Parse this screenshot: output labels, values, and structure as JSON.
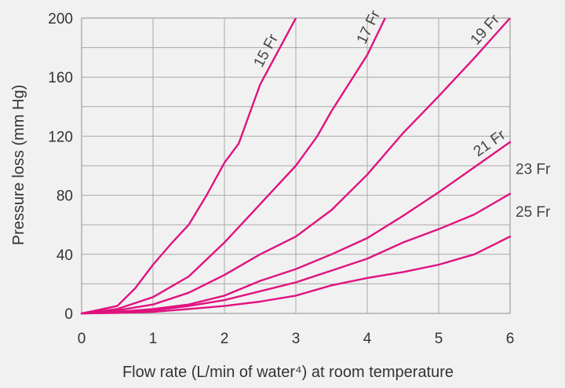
{
  "chart_data": {
    "type": "line",
    "xlabel": "Flow rate (L/min of water⁴) at room temperature",
    "ylabel": "Pressure loss (mm Hg)",
    "xlim": [
      0,
      6
    ],
    "ylim": [
      0,
      200
    ],
    "xticks": [
      "0",
      "1",
      "2",
      "3",
      "4",
      "5",
      "6"
    ],
    "yticks": [
      "0",
      "40",
      "80",
      "120",
      "160",
      "200"
    ],
    "grid": true,
    "line_color": "#e0137f",
    "series": [
      {
        "name": "15 Fr",
        "points": [
          [
            0,
            0
          ],
          [
            0.5,
            5
          ],
          [
            0.75,
            17
          ],
          [
            1,
            33
          ],
          [
            1.25,
            47
          ],
          [
            1.5,
            60
          ],
          [
            1.75,
            80
          ],
          [
            2,
            102
          ],
          [
            2.2,
            115
          ],
          [
            2.5,
            155
          ],
          [
            3,
            200
          ]
        ]
      },
      {
        "name": "17 Fr",
        "points": [
          [
            0,
            0
          ],
          [
            0.5,
            3
          ],
          [
            1,
            11
          ],
          [
            1.5,
            25
          ],
          [
            2,
            48
          ],
          [
            2.5,
            74
          ],
          [
            3,
            100
          ],
          [
            3.3,
            120
          ],
          [
            3.5,
            137
          ],
          [
            4,
            175
          ],
          [
            4.25,
            200
          ]
        ]
      },
      {
        "name": "19 Fr",
        "points": [
          [
            0,
            0
          ],
          [
            0.5,
            2
          ],
          [
            1,
            6
          ],
          [
            1.5,
            14
          ],
          [
            2,
            26
          ],
          [
            2.5,
            40
          ],
          [
            3,
            52
          ],
          [
            3.5,
            70
          ],
          [
            4,
            94
          ],
          [
            4.5,
            122
          ],
          [
            5,
            147
          ],
          [
            5.5,
            173
          ],
          [
            6,
            200
          ]
        ]
      },
      {
        "name": "21 Fr",
        "points": [
          [
            0,
            0
          ],
          [
            0.5,
            1
          ],
          [
            1,
            3
          ],
          [
            1.5,
            6
          ],
          [
            2,
            12
          ],
          [
            2.5,
            22
          ],
          [
            3,
            30
          ],
          [
            3.5,
            40
          ],
          [
            4,
            51
          ],
          [
            4.5,
            66
          ],
          [
            5,
            82
          ],
          [
            5.5,
            99
          ],
          [
            6,
            116
          ]
        ]
      },
      {
        "name": "23 Fr",
        "points": [
          [
            0,
            0
          ],
          [
            0.5,
            0.5
          ],
          [
            1,
            2
          ],
          [
            1.5,
            5
          ],
          [
            2,
            9
          ],
          [
            2.5,
            15
          ],
          [
            3,
            21
          ],
          [
            3.5,
            29
          ],
          [
            4,
            37
          ],
          [
            4.5,
            48
          ],
          [
            5,
            57
          ],
          [
            5.5,
            67
          ],
          [
            6,
            81
          ]
        ]
      },
      {
        "name": "25 Fr",
        "points": [
          [
            0,
            0
          ],
          [
            0.5,
            0.3
          ],
          [
            1,
            1
          ],
          [
            1.5,
            3
          ],
          [
            2,
            5
          ],
          [
            2.5,
            8
          ],
          [
            3,
            12
          ],
          [
            3.5,
            19
          ],
          [
            4,
            24
          ],
          [
            4.5,
            28
          ],
          [
            5,
            33
          ],
          [
            5.5,
            40
          ],
          [
            6,
            52
          ]
        ]
      }
    ]
  }
}
